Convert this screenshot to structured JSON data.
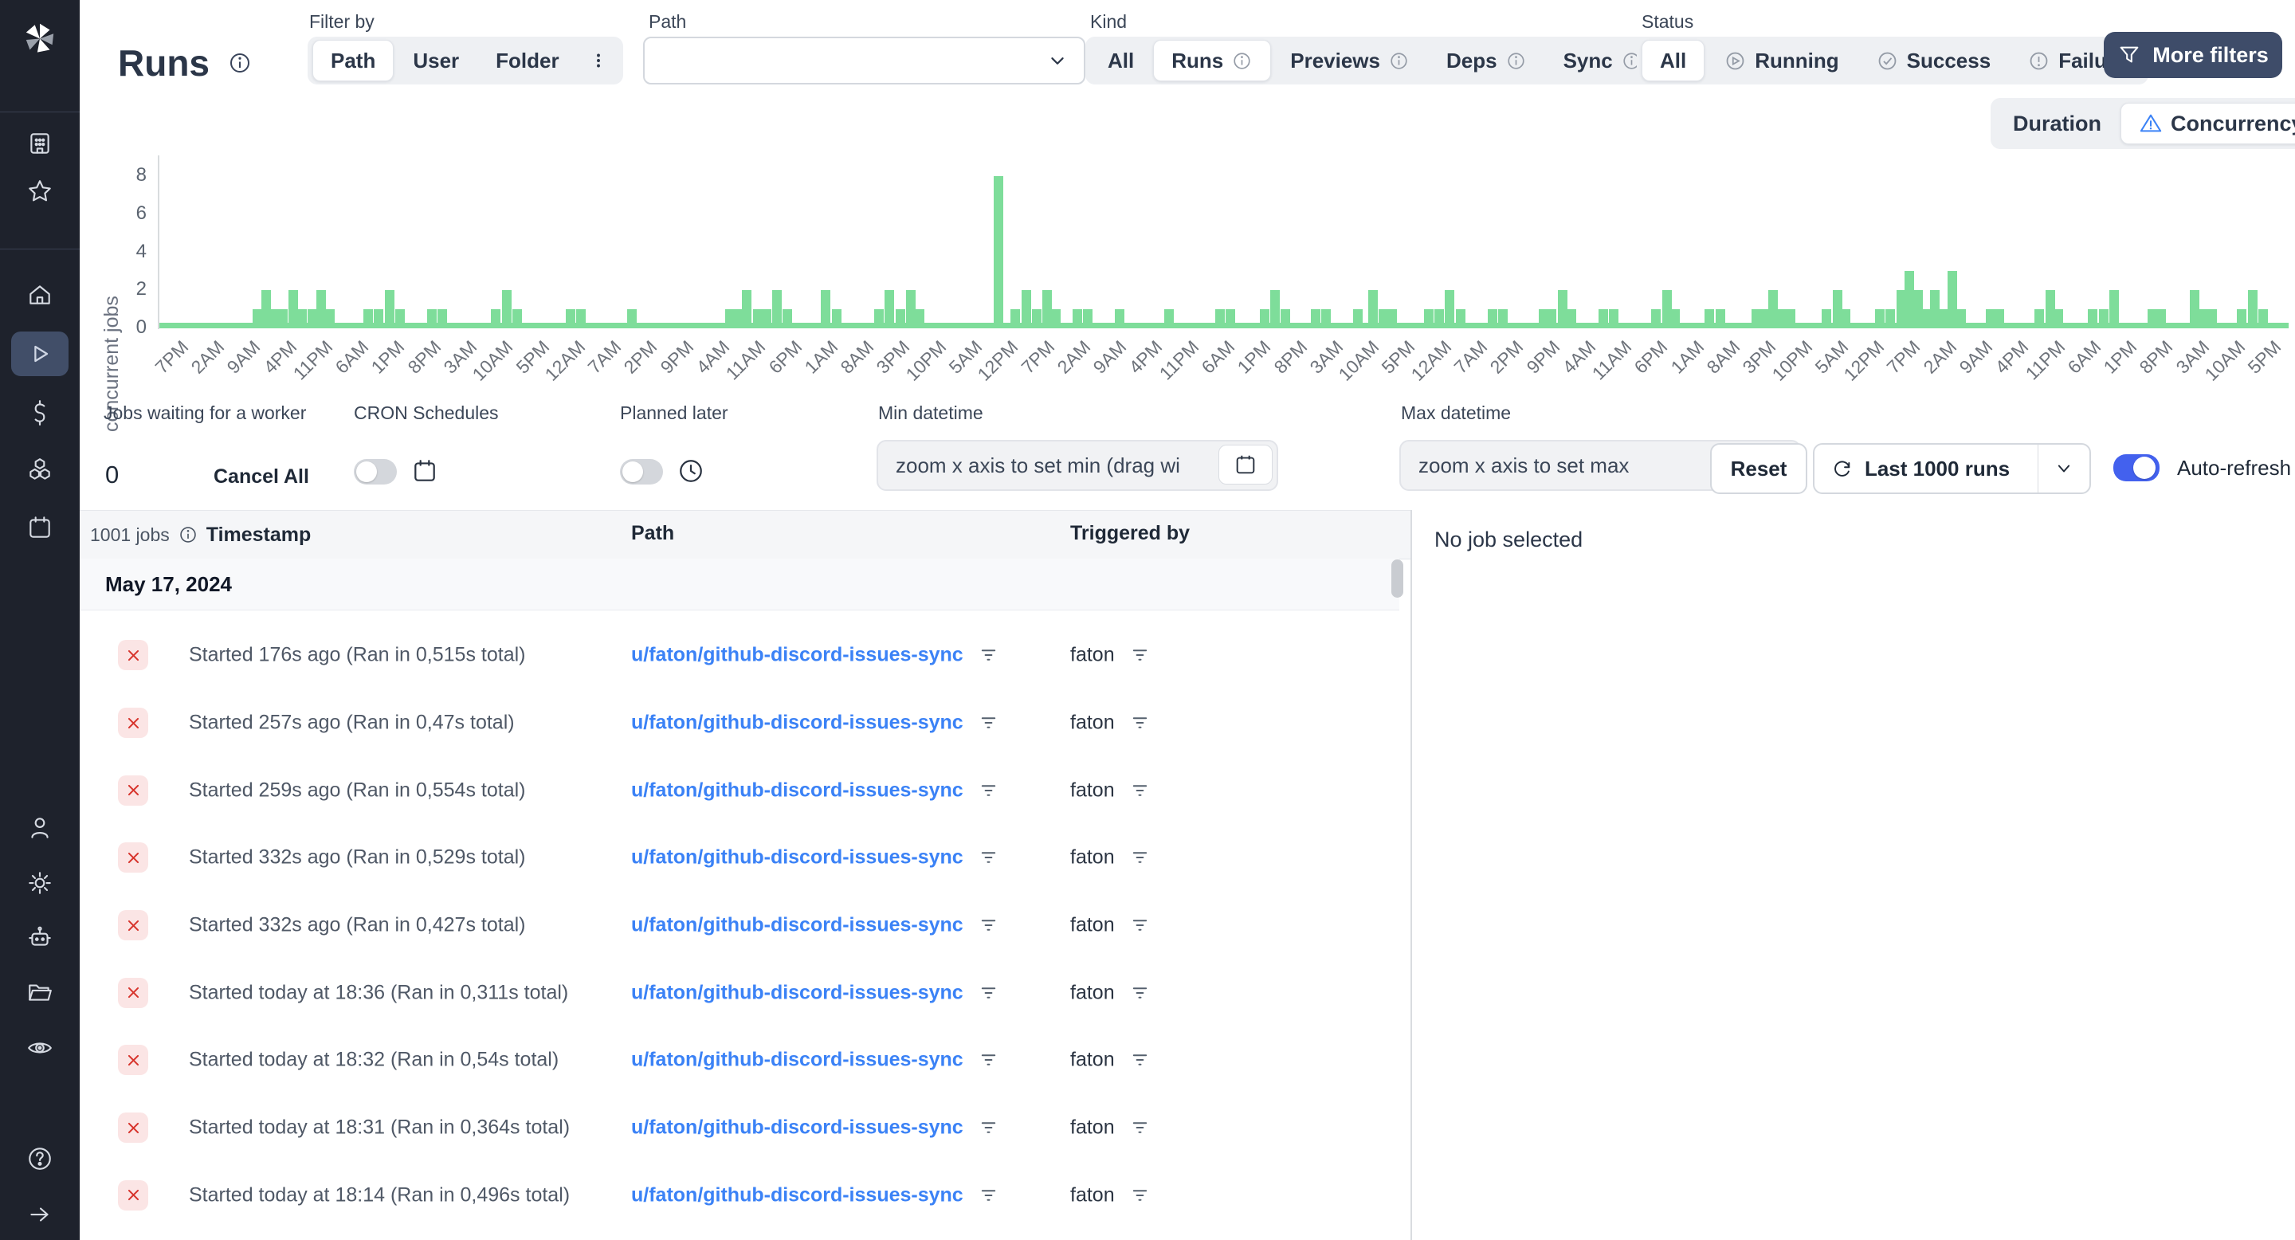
{
  "header": {
    "title": "Runs",
    "filter_by": {
      "label": "Filter by",
      "options": [
        "Path",
        "User",
        "Folder"
      ],
      "selected": "Path"
    },
    "path_filter": {
      "label": "Path",
      "value": ""
    },
    "kind": {
      "label": "Kind",
      "options": [
        "All",
        "Runs",
        "Previews",
        "Deps",
        "Sync"
      ],
      "selected": "Runs"
    },
    "status": {
      "label": "Status",
      "options": [
        "All",
        "Running",
        "Success",
        "Failure"
      ],
      "selected": "All"
    },
    "more_filters_label": "More filters"
  },
  "view_toggle": {
    "options": [
      "Duration",
      "Concurrency"
    ],
    "selected": "Concurrency"
  },
  "chart_data": {
    "type": "bar",
    "title": "",
    "ylabel": "concurrent jobs",
    "yticks": [
      0,
      2,
      4,
      6,
      8
    ],
    "ylim": [
      0,
      8
    ],
    "bar_color": "#7edd9a",
    "grid": false,
    "x_tick_labels": [
      "7PM",
      "2AM",
      "9AM",
      "4PM",
      "11PM",
      "6AM",
      "1PM",
      "8PM",
      "3AM",
      "10AM",
      "5PM",
      "12AM",
      "7AM",
      "2PM",
      "9PM",
      "4AM",
      "11AM",
      "6PM",
      "1AM",
      "8AM",
      "3PM",
      "10PM",
      "5AM",
      "12PM",
      "7PM",
      "2AM",
      "9AM",
      "4PM",
      "11PM",
      "6AM",
      "1PM",
      "8PM",
      "3AM",
      "10AM",
      "5PM",
      "12AM",
      "7AM",
      "2PM",
      "9PM",
      "4AM",
      "11AM",
      "6PM",
      "1AM",
      "8AM",
      "3PM",
      "10PM",
      "5AM",
      "12PM",
      "7PM",
      "2AM",
      "9AM",
      "4PM",
      "11PM",
      "6AM",
      "1PM",
      "8PM",
      "3AM",
      "10AM",
      "5PM"
    ],
    "bars": [
      [
        0.046,
        1
      ],
      [
        0.05,
        2
      ],
      [
        0.054,
        1
      ],
      [
        0.058,
        1
      ],
      [
        0.063,
        2
      ],
      [
        0.067,
        1
      ],
      [
        0.072,
        1
      ],
      [
        0.076,
        2
      ],
      [
        0.08,
        1
      ],
      [
        0.098,
        1
      ],
      [
        0.103,
        1
      ],
      [
        0.108,
        2
      ],
      [
        0.113,
        1
      ],
      [
        0.128,
        1
      ],
      [
        0.133,
        1
      ],
      [
        0.158,
        1
      ],
      [
        0.163,
        2
      ],
      [
        0.168,
        1
      ],
      [
        0.193,
        1
      ],
      [
        0.198,
        1
      ],
      [
        0.222,
        1
      ],
      [
        0.268,
        1
      ],
      [
        0.272,
        1
      ],
      [
        0.276,
        2
      ],
      [
        0.281,
        1
      ],
      [
        0.285,
        1
      ],
      [
        0.29,
        2
      ],
      [
        0.295,
        1
      ],
      [
        0.313,
        2
      ],
      [
        0.318,
        1
      ],
      [
        0.338,
        1
      ],
      [
        0.343,
        2
      ],
      [
        0.348,
        1
      ],
      [
        0.353,
        2
      ],
      [
        0.357,
        1
      ],
      [
        0.394,
        8
      ],
      [
        0.402,
        1
      ],
      [
        0.407,
        2
      ],
      [
        0.412,
        1
      ],
      [
        0.417,
        2
      ],
      [
        0.421,
        1
      ],
      [
        0.431,
        1
      ],
      [
        0.436,
        1
      ],
      [
        0.451,
        1
      ],
      [
        0.474,
        1
      ],
      [
        0.498,
        1
      ],
      [
        0.503,
        1
      ],
      [
        0.519,
        1
      ],
      [
        0.524,
        2
      ],
      [
        0.529,
        1
      ],
      [
        0.543,
        1
      ],
      [
        0.548,
        1
      ],
      [
        0.563,
        1
      ],
      [
        0.57,
        2
      ],
      [
        0.575,
        1
      ],
      [
        0.579,
        1
      ],
      [
        0.596,
        1
      ],
      [
        0.601,
        1
      ],
      [
        0.606,
        2
      ],
      [
        0.611,
        1
      ],
      [
        0.626,
        1
      ],
      [
        0.631,
        1
      ],
      [
        0.65,
        1
      ],
      [
        0.654,
        1
      ],
      [
        0.659,
        2
      ],
      [
        0.663,
        1
      ],
      [
        0.678,
        1
      ],
      [
        0.683,
        1
      ],
      [
        0.703,
        1
      ],
      [
        0.708,
        2
      ],
      [
        0.712,
        1
      ],
      [
        0.728,
        1
      ],
      [
        0.733,
        1
      ],
      [
        0.75,
        1
      ],
      [
        0.754,
        1
      ],
      [
        0.758,
        2
      ],
      [
        0.762,
        1
      ],
      [
        0.766,
        1
      ],
      [
        0.783,
        1
      ],
      [
        0.788,
        2
      ],
      [
        0.792,
        1
      ],
      [
        0.808,
        1
      ],
      [
        0.813,
        1
      ],
      [
        0.818,
        2
      ],
      [
        0.822,
        3
      ],
      [
        0.826,
        2
      ],
      [
        0.83,
        1
      ],
      [
        0.834,
        2
      ],
      [
        0.838,
        1
      ],
      [
        0.842,
        3
      ],
      [
        0.846,
        1
      ],
      [
        0.86,
        1
      ],
      [
        0.864,
        1
      ],
      [
        0.883,
        1
      ],
      [
        0.888,
        2
      ],
      [
        0.892,
        1
      ],
      [
        0.908,
        1
      ],
      [
        0.913,
        1
      ],
      [
        0.918,
        2
      ],
      [
        0.936,
        1
      ],
      [
        0.94,
        1
      ],
      [
        0.956,
        2
      ],
      [
        0.96,
        1
      ],
      [
        0.964,
        1
      ],
      [
        0.978,
        1
      ],
      [
        0.983,
        2
      ],
      [
        0.988,
        1
      ]
    ]
  },
  "controls": {
    "jobs_waiting": {
      "label": "Jobs waiting for a worker",
      "value": "0",
      "cancel_all": "Cancel All"
    },
    "cron": {
      "label": "CRON Schedules",
      "enabled": false
    },
    "planned": {
      "label": "Planned later",
      "enabled": false
    },
    "min_datetime": {
      "label": "Min datetime",
      "placeholder": "zoom x axis to set min (drag wi"
    },
    "max_datetime": {
      "label": "Max datetime",
      "placeholder": "zoom x axis to set max"
    },
    "reset_label": "Reset",
    "runs_limit": {
      "label": "Last 1000 runs"
    },
    "auto_refresh": {
      "label": "Auto-refresh",
      "enabled": true
    }
  },
  "table": {
    "jobs_count": "1001 jobs",
    "columns": [
      "Timestamp",
      "Path",
      "Triggered by"
    ],
    "date_group": "May 17, 2024",
    "rows": [
      {
        "status": "failure",
        "timestamp": "Started 176s ago (Ran in 0,515s total)",
        "path": "u/faton/github-discord-issues-sync",
        "triggered_by": "faton"
      },
      {
        "status": "failure",
        "timestamp": "Started 257s ago (Ran in 0,47s total)",
        "path": "u/faton/github-discord-issues-sync",
        "triggered_by": "faton"
      },
      {
        "status": "failure",
        "timestamp": "Started 259s ago (Ran in 0,554s total)",
        "path": "u/faton/github-discord-issues-sync",
        "triggered_by": "faton"
      },
      {
        "status": "failure",
        "timestamp": "Started 332s ago (Ran in 0,529s total)",
        "path": "u/faton/github-discord-issues-sync",
        "triggered_by": "faton"
      },
      {
        "status": "failure",
        "timestamp": "Started 332s ago (Ran in 0,427s total)",
        "path": "u/faton/github-discord-issues-sync",
        "triggered_by": "faton"
      },
      {
        "status": "failure",
        "timestamp": "Started today at 18:36 (Ran in 0,311s total)",
        "path": "u/faton/github-discord-issues-sync",
        "triggered_by": "faton"
      },
      {
        "status": "failure",
        "timestamp": "Started today at 18:32 (Ran in 0,54s total)",
        "path": "u/faton/github-discord-issues-sync",
        "triggered_by": "faton"
      },
      {
        "status": "failure",
        "timestamp": "Started today at 18:31 (Ran in 0,364s total)",
        "path": "u/faton/github-discord-issues-sync",
        "triggered_by": "faton"
      },
      {
        "status": "failure",
        "timestamp": "Started today at 18:14 (Ran in 0,496s total)",
        "path": "u/faton/github-discord-issues-sync",
        "triggered_by": "faton"
      }
    ]
  },
  "right_panel": {
    "empty_text": "No job selected"
  },
  "colors": {
    "accent_blue": "#4361ee",
    "link_blue": "#3b82f6",
    "chart_green": "#7edd9a",
    "failure_red": "#d7342c",
    "dark_button": "#3e4c69",
    "warning_icon_blue": "#3b82f6",
    "sidebar_bg": "#1e222c"
  }
}
